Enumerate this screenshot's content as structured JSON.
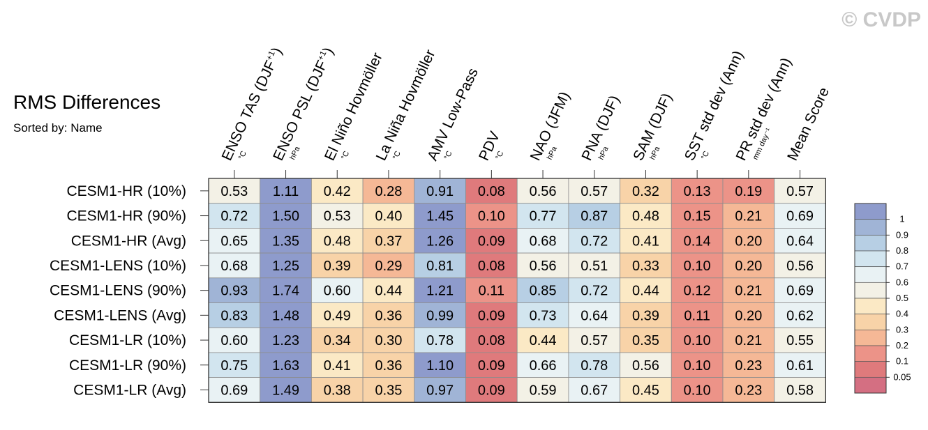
{
  "watermark": "© CVDP",
  "chart_data": {
    "type": "heatmap",
    "title": "RMS Differences",
    "subtitle": "Sorted by: Name",
    "columns": [
      {
        "label": "ENSO TAS (DJF",
        "sup": "+1",
        "close": ")",
        "unit": "°C"
      },
      {
        "label": "ENSO PSL (DJF",
        "sup": "+1",
        "close": ")",
        "unit": "hPa"
      },
      {
        "label": "El Niño Hovmöller",
        "sup": "",
        "close": "",
        "unit": "°C"
      },
      {
        "label": "La Niña Hovmöller",
        "sup": "",
        "close": "",
        "unit": "°C"
      },
      {
        "label": "AMV Low-Pass",
        "sup": "",
        "close": "",
        "unit": "°C"
      },
      {
        "label": "PDV",
        "sup": "",
        "close": "",
        "unit": "°C"
      },
      {
        "label": "NAO (JFM)",
        "sup": "",
        "close": "",
        "unit": "hPa"
      },
      {
        "label": "PNA (DJF)",
        "sup": "",
        "close": "",
        "unit": "hPa"
      },
      {
        "label": "SAM (DJF)",
        "sup": "",
        "close": "",
        "unit": "hPa"
      },
      {
        "label": "SST std dev (Ann)",
        "sup": "",
        "close": "",
        "unit": "°C"
      },
      {
        "label": "PR std dev (Ann)",
        "sup": "",
        "close": "",
        "unit": "mm day⁻¹"
      },
      {
        "label": "Mean Score",
        "sup": "",
        "close": "",
        "unit": ""
      }
    ],
    "rows": [
      "CESM1-HR (10%)",
      "CESM1-HR (90%)",
      "CESM1-HR (Avg)",
      "CESM1-LENS (10%)",
      "CESM1-LENS (90%)",
      "CESM1-LENS (Avg)",
      "CESM1-LR (10%)",
      "CESM1-LR (90%)",
      "CESM1-LR (Avg)"
    ],
    "values": [
      [
        0.53,
        1.11,
        0.42,
        0.28,
        0.91,
        0.08,
        0.56,
        0.57,
        0.32,
        0.13,
        0.19,
        0.57
      ],
      [
        0.72,
        1.5,
        0.53,
        0.4,
        1.45,
        0.1,
        0.77,
        0.87,
        0.48,
        0.15,
        0.21,
        0.69
      ],
      [
        0.65,
        1.35,
        0.48,
        0.37,
        1.26,
        0.09,
        0.68,
        0.72,
        0.41,
        0.14,
        0.2,
        0.64
      ],
      [
        0.68,
        1.25,
        0.39,
        0.29,
        0.81,
        0.08,
        0.56,
        0.51,
        0.33,
        0.1,
        0.2,
        0.56
      ],
      [
        0.93,
        1.74,
        0.6,
        0.44,
        1.21,
        0.11,
        0.85,
        0.72,
        0.44,
        0.12,
        0.21,
        0.69
      ],
      [
        0.83,
        1.48,
        0.49,
        0.36,
        0.99,
        0.09,
        0.73,
        0.64,
        0.39,
        0.11,
        0.2,
        0.62
      ],
      [
        0.6,
        1.23,
        0.34,
        0.3,
        0.78,
        0.08,
        0.44,
        0.57,
        0.35,
        0.1,
        0.21,
        0.55
      ],
      [
        0.75,
        1.63,
        0.41,
        0.36,
        1.1,
        0.09,
        0.66,
        0.78,
        0.56,
        0.1,
        0.23,
        0.61
      ],
      [
        0.69,
        1.49,
        0.38,
        0.35,
        0.97,
        0.09,
        0.59,
        0.67,
        0.45,
        0.1,
        0.23,
        0.58
      ]
    ],
    "colorbar": {
      "labels": [
        "1",
        "0.9",
        "0.8",
        "0.7",
        "0.6",
        "0.5",
        "0.4",
        "0.3",
        "0.2",
        "0.1",
        "0.05"
      ],
      "thresholds": [
        1.0,
        0.9,
        0.8,
        0.7,
        0.6,
        0.5,
        0.4,
        0.3,
        0.2,
        0.1,
        0.05
      ],
      "colors": [
        "#8e9bcc",
        "#a0b4d6",
        "#b7cfe4",
        "#d2e5ef",
        "#e9f2f4",
        "#f3f1e6",
        "#fbe9c5",
        "#f8d3a8",
        "#f5b896",
        "#ec9388",
        "#df7a7c",
        "#d46f82"
      ]
    }
  }
}
